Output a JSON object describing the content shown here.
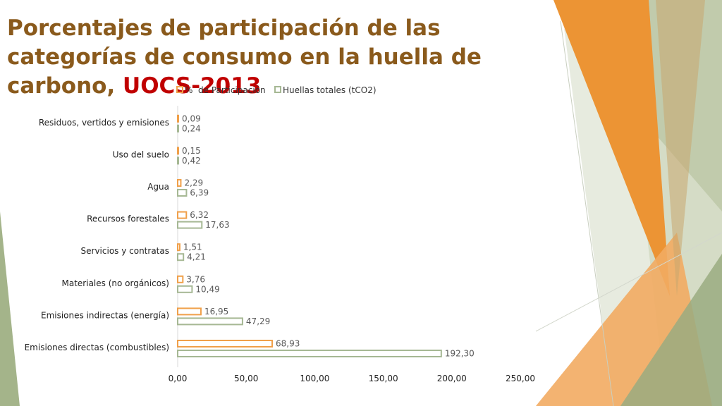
{
  "slide": {
    "title_part1": "Porcentajes de participación de las categorías de consumo en la huella de carbono, ",
    "title_highlight": "UOCS-2013"
  },
  "colors": {
    "title": "#8a5a1c",
    "highlight": "#c00000",
    "series_participacion": "#f0a04a",
    "series_huellas": "#a6b894",
    "deco_orange": "#ef9a36",
    "deco_green": "#9aab80"
  },
  "chart_data": {
    "type": "bar",
    "orientation": "horizontal",
    "categories": [
      "Residuos, vertidos y emisiones",
      "Uso del suelo",
      "Agua",
      "Recursos forestales",
      "Servicios y contratas",
      "Materiales (no orgánicos)",
      "Emisiones indirectas (energía)",
      "Emisiones directas (combustibles)"
    ],
    "series": [
      {
        "name": "%  de Participación",
        "values": [
          0.09,
          0.15,
          2.29,
          6.32,
          1.51,
          3.76,
          16.95,
          68.93
        ],
        "labels": [
          "0,09",
          "0,15",
          "2,29",
          "6,32",
          "1,51",
          "3,76",
          "16,95",
          "68,93"
        ],
        "color": "#f0a04a"
      },
      {
        "name": "Huellas totales (tCO2)",
        "values": [
          0.24,
          0.42,
          6.39,
          17.63,
          4.21,
          10.49,
          47.29,
          192.3
        ],
        "labels": [
          "0,24",
          "0,42",
          "6,39",
          "17,63",
          "4,21",
          "10,49",
          "47,29",
          "192,30"
        ],
        "color": "#a6b894"
      }
    ],
    "xlim": [
      0,
      250
    ],
    "ticks": [
      0,
      50,
      100,
      150,
      200,
      250
    ],
    "tick_labels": [
      "0,00",
      "50,00",
      "100,00",
      "150,00",
      "200,00",
      "250,00"
    ],
    "legend_position": "top",
    "grid": false
  }
}
